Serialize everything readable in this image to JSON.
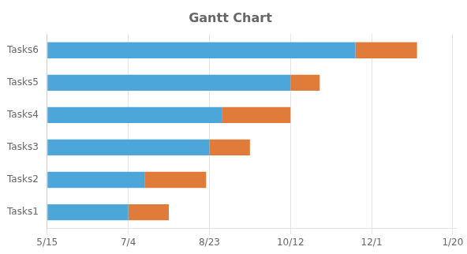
{
  "chart_data": {
    "type": "bar",
    "orientation": "horizontal",
    "stacked": true,
    "title": "Gantt Chart",
    "categories": [
      "Tasks1",
      "Tasks2",
      "Tasks3",
      "Tasks4",
      "Tasks5",
      "Tasks6"
    ],
    "series": [
      {
        "color": "#4DA6D9",
        "values": [
          50,
          60,
          100,
          108,
          150,
          190
        ]
      },
      {
        "color": "#E07B39",
        "values": [
          25,
          38,
          25,
          42,
          18,
          38
        ]
      }
    ],
    "xlim": [
      0,
      252
    ],
    "xticks": [
      {
        "value": 0,
        "label": "5/15"
      },
      {
        "value": 50,
        "label": "7/4"
      },
      {
        "value": 100,
        "label": "8/23"
      },
      {
        "value": 150,
        "label": "10/12"
      },
      {
        "value": 200,
        "label": "12/1"
      },
      {
        "value": 250,
        "label": "1/20"
      }
    ],
    "grid": "x"
  }
}
